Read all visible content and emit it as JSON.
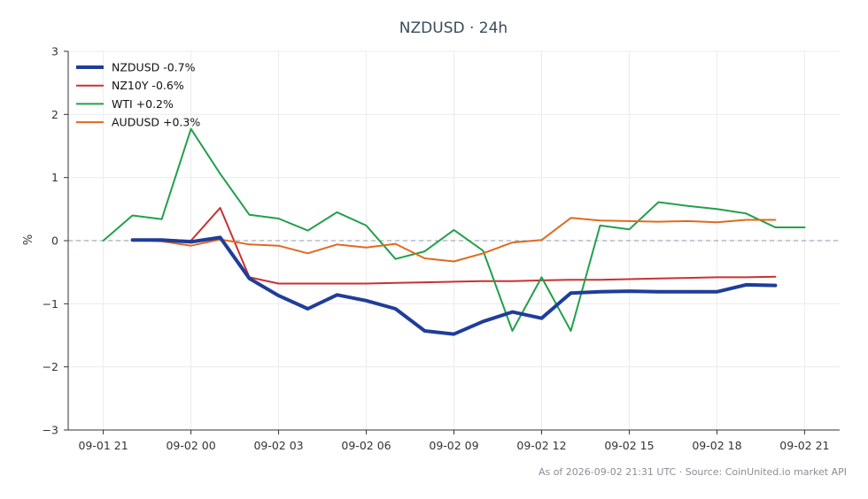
{
  "chart_data": {
    "type": "line",
    "title": "NZDUSD · 24h",
    "ylabel": "%",
    "xlabel": "",
    "ylim": [
      -3,
      3
    ],
    "yticks": [
      3,
      2,
      1,
      0,
      -1,
      -2,
      -3
    ],
    "ytick_labels": [
      "3",
      "2",
      "1",
      "0",
      "−1",
      "−2",
      "−3"
    ],
    "x_unit": "hours after 09-01 21:00 UTC",
    "xlim": [
      -1.2,
      25.2
    ],
    "xticks": [
      0,
      3,
      6,
      9,
      12,
      15,
      18,
      21,
      24
    ],
    "xtick_labels": [
      "09-01 21",
      "09-02 00",
      "09-02 03",
      "09-02 06",
      "09-02 09",
      "09-02 12",
      "09-02 15",
      "09-02 18",
      "09-02 21"
    ],
    "zero_line": true,
    "grid": true,
    "legend_position": "top-left",
    "footer": "As of 2026-09-02 21:31 UTC · Source: CoinUnited.io market API",
    "series": [
      {
        "name": "NZDUSD -0.7%",
        "color": "#1f3d99",
        "width": 4,
        "x": [
          1,
          2,
          3,
          4,
          5,
          6,
          7,
          8,
          9,
          10,
          11,
          12,
          13,
          14,
          15,
          16,
          17,
          18,
          19,
          20,
          21,
          22,
          23
        ],
        "y": [
          0.01,
          0.01,
          -0.02,
          0.05,
          -0.6,
          -0.87,
          -1.08,
          -0.86,
          -0.95,
          -1.08,
          -1.43,
          -1.48,
          -1.28,
          -1.13,
          -1.23,
          -0.83,
          -0.81,
          -0.8,
          -0.81,
          -0.81,
          -0.81,
          -0.7,
          -0.71
        ]
      },
      {
        "name": "NZ10Y -0.6%",
        "color": "#c83232",
        "width": 2,
        "x": [
          1,
          2,
          3,
          4,
          5,
          6,
          7,
          8,
          9,
          10,
          11,
          12,
          13,
          14,
          15,
          16,
          17,
          18,
          19,
          20,
          21,
          22,
          23
        ],
        "y": [
          0.02,
          0.02,
          0.0,
          0.52,
          -0.58,
          -0.68,
          -0.68,
          -0.68,
          -0.68,
          -0.67,
          -0.66,
          -0.65,
          -0.64,
          -0.64,
          -0.63,
          -0.62,
          -0.62,
          -0.61,
          -0.6,
          -0.59,
          -0.58,
          -0.58,
          -0.57
        ]
      },
      {
        "name": "WTI +0.2%",
        "color": "#22a04b",
        "width": 2,
        "x": [
          0,
          1,
          2,
          3,
          4,
          5,
          6,
          7,
          8,
          9,
          10,
          11,
          12,
          13,
          14,
          15,
          16,
          17,
          18,
          19,
          20,
          21,
          22,
          23,
          24
        ],
        "y": [
          0.0,
          0.4,
          0.34,
          1.77,
          1.06,
          0.41,
          0.35,
          0.16,
          0.45,
          0.24,
          -0.29,
          -0.17,
          0.17,
          -0.16,
          -1.43,
          -0.58,
          -1.43,
          0.24,
          0.18,
          0.61,
          0.55,
          0.5,
          0.43,
          0.21,
          0.21
        ]
      },
      {
        "name": "AUDUSD +0.3%",
        "color": "#e06a1e",
        "width": 2,
        "x": [
          1,
          2,
          3,
          4,
          5,
          6,
          7,
          8,
          9,
          10,
          11,
          12,
          13,
          14,
          15,
          16,
          17,
          18,
          19,
          20,
          21,
          22,
          23
        ],
        "y": [
          0.01,
          -0.01,
          -0.08,
          0.02,
          -0.06,
          -0.08,
          -0.2,
          -0.06,
          -0.11,
          -0.05,
          -0.28,
          -0.33,
          -0.2,
          -0.03,
          0.01,
          0.36,
          0.32,
          0.31,
          0.3,
          0.31,
          0.29,
          0.33,
          0.33
        ]
      }
    ]
  }
}
